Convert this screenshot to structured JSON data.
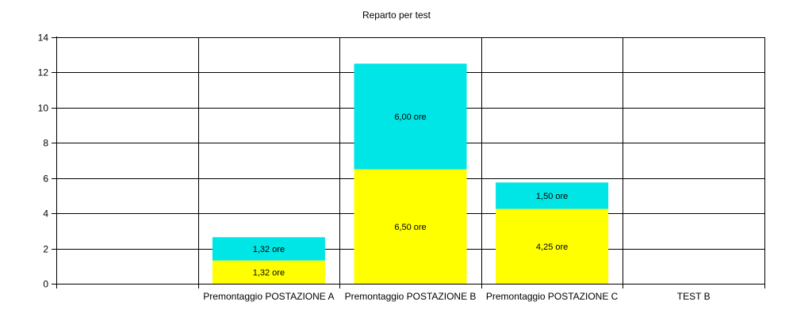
{
  "chart_data": {
    "type": "bar",
    "stacked": true,
    "title": "Reparto per test",
    "xlabel": "",
    "ylabel": "",
    "ylim": [
      0,
      14
    ],
    "yticks": [
      0,
      2,
      4,
      6,
      8,
      10,
      12,
      14
    ],
    "grid": true,
    "categories": [
      "",
      "Premontaggio POSTAZIONE A",
      "Premontaggio POSTAZIONE B",
      "Premontaggio POSTAZIONE C",
      "TEST B"
    ],
    "series": [
      {
        "color": "#ffff00",
        "values": [
          0,
          1.32,
          6.5,
          4.25,
          0
        ],
        "labels": [
          "",
          "1,32 ore",
          "6,50 ore",
          "4,25 ore",
          ""
        ]
      },
      {
        "color": "#00e5e5",
        "values": [
          0,
          1.32,
          6.0,
          1.5,
          0
        ],
        "labels": [
          "",
          "1,32 ore",
          "6,00 ore",
          "1,50 ore",
          ""
        ]
      }
    ]
  }
}
